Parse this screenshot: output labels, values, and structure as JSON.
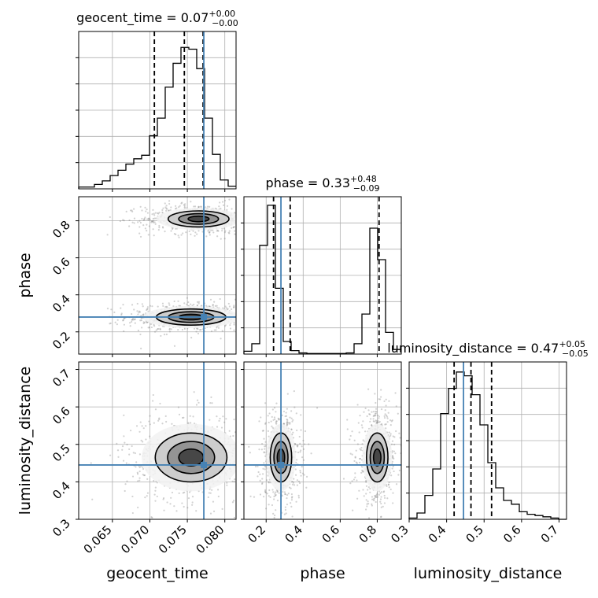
{
  "chart_data": {
    "type": "corner",
    "parameters": [
      "geocent_time",
      "phase",
      "luminosity_distance"
    ],
    "truth_color": "#4682b4",
    "truths": {
      "geocent_time": 0.0772,
      "phase": 0.28,
      "luminosity_distance": 0.445
    },
    "axis_labels": {
      "x": [
        "geocent_time",
        "phase",
        "luminosity_distance"
      ],
      "y": [
        "phase",
        "luminosity_distance"
      ]
    },
    "titles": [
      {
        "param": "geocent_time",
        "text": "geocent_time = 0.07",
        "plus": "+0.00",
        "minus": "−0.00"
      },
      {
        "param": "phase",
        "text": "phase = 0.33",
        "plus": "+0.48",
        "minus": "−0.09"
      },
      {
        "param": "luminosity_distance",
        "text": "luminosity_distance = 0.47",
        "plus": "+0.05",
        "minus": "−0.05"
      }
    ],
    "ranges": {
      "geocent_time": [
        0.0605,
        0.0815
      ],
      "phase": [
        0.08,
        0.93
      ],
      "luminosity_distance": [
        0.3,
        0.72
      ]
    },
    "ticks": {
      "geocent_time": [
        "0.065",
        "0.070",
        "0.075",
        "0.080"
      ],
      "phase": [
        "0.2",
        "0.4",
        "0.6",
        "0.8"
      ],
      "luminosity_distance": [
        "0.3",
        "0.4",
        "0.5",
        "0.6",
        "0.7"
      ]
    },
    "quantiles": {
      "geocent_time": [
        0.0706,
        0.0746,
        0.0771
      ],
      "phase": [
        0.24,
        0.33,
        0.81
      ],
      "luminosity_distance": [
        0.42,
        0.465,
        0.52
      ]
    },
    "histograms": [
      {
        "param": "geocent_time",
        "edges_start": 0.0605,
        "bin_width": 0.00105,
        "counts": [
          2,
          2,
          5,
          9,
          15,
          21,
          28,
          34,
          38,
          60,
          80,
          115,
          142,
          160,
          158,
          136,
          80,
          39,
          10,
          3
        ]
      },
      {
        "param": "phase",
        "edges_start": 0.08,
        "bin_width": 0.0425,
        "counts": [
          5,
          18,
          190,
          260,
          115,
          22,
          6,
          2,
          1,
          1,
          1,
          1,
          1,
          2,
          18,
          70,
          220,
          165,
          38,
          8
        ]
      },
      {
        "param": "luminosity_distance",
        "edges_start": 0.3,
        "bin_width": 0.021,
        "counts": [
          1,
          5,
          19,
          40,
          84,
          104,
          117,
          114,
          99,
          75,
          45,
          25,
          15,
          12,
          6,
          4,
          3,
          2,
          1,
          0
        ]
      }
    ],
    "histogram_ylim": {
      "geocent_time": [
        0,
        178
      ],
      "phase": [
        0,
        275
      ],
      "luminosity_distance": [
        0,
        125
      ]
    },
    "modes_2d": {
      "geocent_time_vs_phase": [
        {
          "x": 0.0755,
          "y": 0.28,
          "sx": 0.0032,
          "sy": 0.03
        },
        {
          "x": 0.0765,
          "y": 0.81,
          "sx": 0.0028,
          "sy": 0.03
        }
      ],
      "geocent_time_vs_luminosity_distance": [
        {
          "x": 0.0755,
          "y": 0.465,
          "sx": 0.0033,
          "sy": 0.045
        }
      ],
      "phase_vs_luminosity_distance": [
        {
          "x": 0.28,
          "y": 0.465,
          "sx": 0.04,
          "sy": 0.045
        },
        {
          "x": 0.8,
          "y": 0.465,
          "sx": 0.04,
          "sy": 0.045
        }
      ]
    },
    "grid": true,
    "legend": "none"
  }
}
